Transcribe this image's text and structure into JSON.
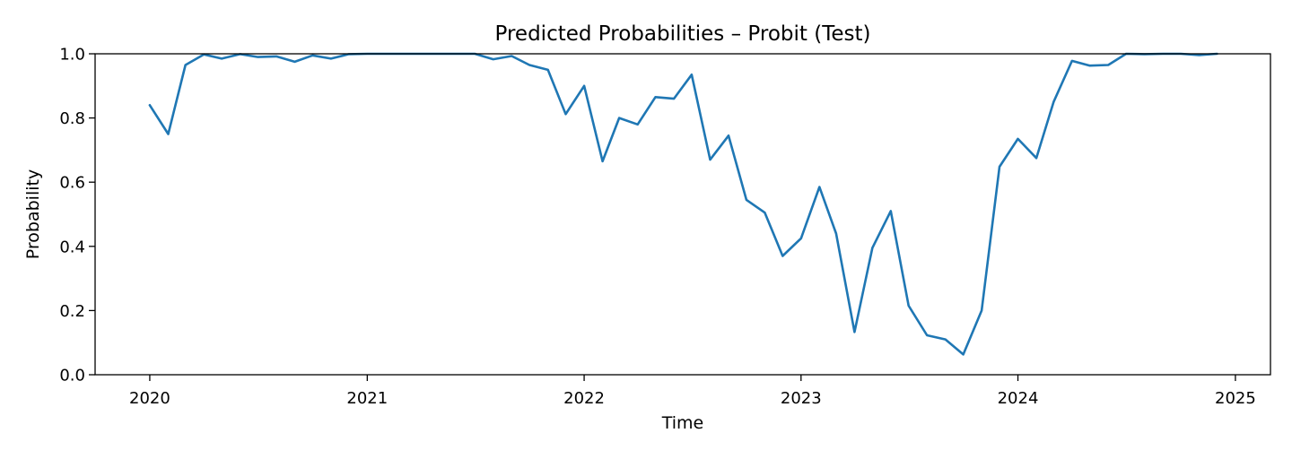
{
  "chart_data": {
    "type": "line",
    "title": "Predicted Probabilities – Probit (Test)",
    "xlabel": "Time",
    "ylabel": "Probability",
    "xlim": [
      "2019-10-01",
      "2025-03-01"
    ],
    "ylim": [
      0.0,
      1.0
    ],
    "x_ticks": [
      {
        "date": "2020-01-01",
        "label": "2020"
      },
      {
        "date": "2021-01-01",
        "label": "2021"
      },
      {
        "date": "2022-01-01",
        "label": "2022"
      },
      {
        "date": "2023-01-01",
        "label": "2023"
      },
      {
        "date": "2024-01-01",
        "label": "2024"
      },
      {
        "date": "2025-01-01",
        "label": "2025"
      }
    ],
    "y_ticks": [
      {
        "value": 0.0,
        "label": "0.0"
      },
      {
        "value": 0.2,
        "label": "0.2"
      },
      {
        "value": 0.4,
        "label": "0.4"
      },
      {
        "value": 0.6,
        "label": "0.6"
      },
      {
        "value": 0.8,
        "label": "0.8"
      },
      {
        "value": 1.0,
        "label": "1.0"
      }
    ],
    "grid": false,
    "series": [
      {
        "color": "#1f77b4",
        "x": [
          "2020-01-01",
          "2020-02-01",
          "2020-03-01",
          "2020-04-01",
          "2020-05-01",
          "2020-06-01",
          "2020-07-01",
          "2020-08-01",
          "2020-09-01",
          "2020-10-01",
          "2020-11-01",
          "2020-12-01",
          "2021-01-01",
          "2021-02-01",
          "2021-03-01",
          "2021-04-01",
          "2021-05-01",
          "2021-06-01",
          "2021-07-01",
          "2021-08-01",
          "2021-09-01",
          "2021-10-01",
          "2021-11-01",
          "2021-12-01",
          "2022-01-01",
          "2022-02-01",
          "2022-03-01",
          "2022-04-01",
          "2022-05-01",
          "2022-06-01",
          "2022-07-01",
          "2022-08-01",
          "2022-09-01",
          "2022-10-01",
          "2022-11-01",
          "2022-12-01",
          "2023-01-01",
          "2023-02-01",
          "2023-03-01",
          "2023-04-01",
          "2023-05-01",
          "2023-06-01",
          "2023-07-01",
          "2023-08-01",
          "2023-09-01",
          "2023-10-01",
          "2023-11-01",
          "2023-12-01",
          "2024-01-01",
          "2024-02-01",
          "2024-03-01",
          "2024-04-01",
          "2024-05-01",
          "2024-06-01",
          "2024-07-01",
          "2024-08-01",
          "2024-09-01",
          "2024-10-01",
          "2024-11-01",
          "2024-12-01"
        ],
        "values": [
          0.84,
          0.75,
          0.965,
          0.998,
          0.985,
          0.999,
          0.99,
          0.992,
          0.975,
          0.995,
          0.985,
          0.999,
          1.0,
          1.0,
          1.0,
          1.0,
          1.0,
          1.0,
          1.0,
          0.983,
          0.993,
          0.965,
          0.95,
          0.812,
          0.9,
          0.665,
          0.8,
          0.78,
          0.865,
          0.86,
          0.935,
          0.67,
          0.745,
          0.545,
          0.505,
          0.37,
          0.425,
          0.585,
          0.44,
          0.133,
          0.395,
          0.51,
          0.215,
          0.123,
          0.11,
          0.063,
          0.2,
          0.648,
          0.735,
          0.675,
          0.85,
          0.978,
          0.963,
          0.965,
          1.0,
          0.999,
          1.0,
          1.0,
          0.996,
          1.0
        ]
      }
    ]
  }
}
